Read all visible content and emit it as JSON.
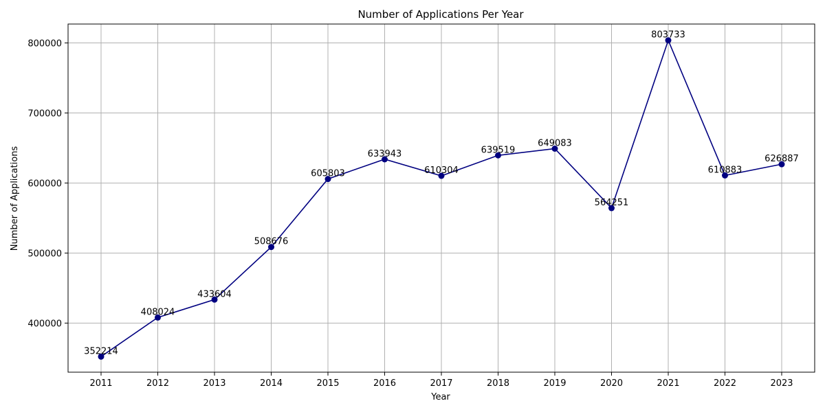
{
  "chart_data": {
    "type": "line",
    "title": "Number of Applications Per Year",
    "xlabel": "Year",
    "ylabel": "Number of Applications",
    "x": [
      "2011",
      "2012",
      "2013",
      "2014",
      "2015",
      "2016",
      "2017",
      "2018",
      "2019",
      "2020",
      "2021",
      "2022",
      "2023"
    ],
    "series": [
      {
        "values": [
          352214,
          408024,
          433604,
          508676,
          605803,
          633943,
          610304,
          639519,
          649083,
          564251,
          803733,
          610883,
          626887
        ]
      }
    ],
    "y_ticks": [
      "400000",
      "500000",
      "600000",
      "700000",
      "800000"
    ],
    "ylim": [
      330000,
      827000
    ],
    "grid": true,
    "marker": "circle",
    "line_color": "#000080",
    "data_labels": true
  }
}
